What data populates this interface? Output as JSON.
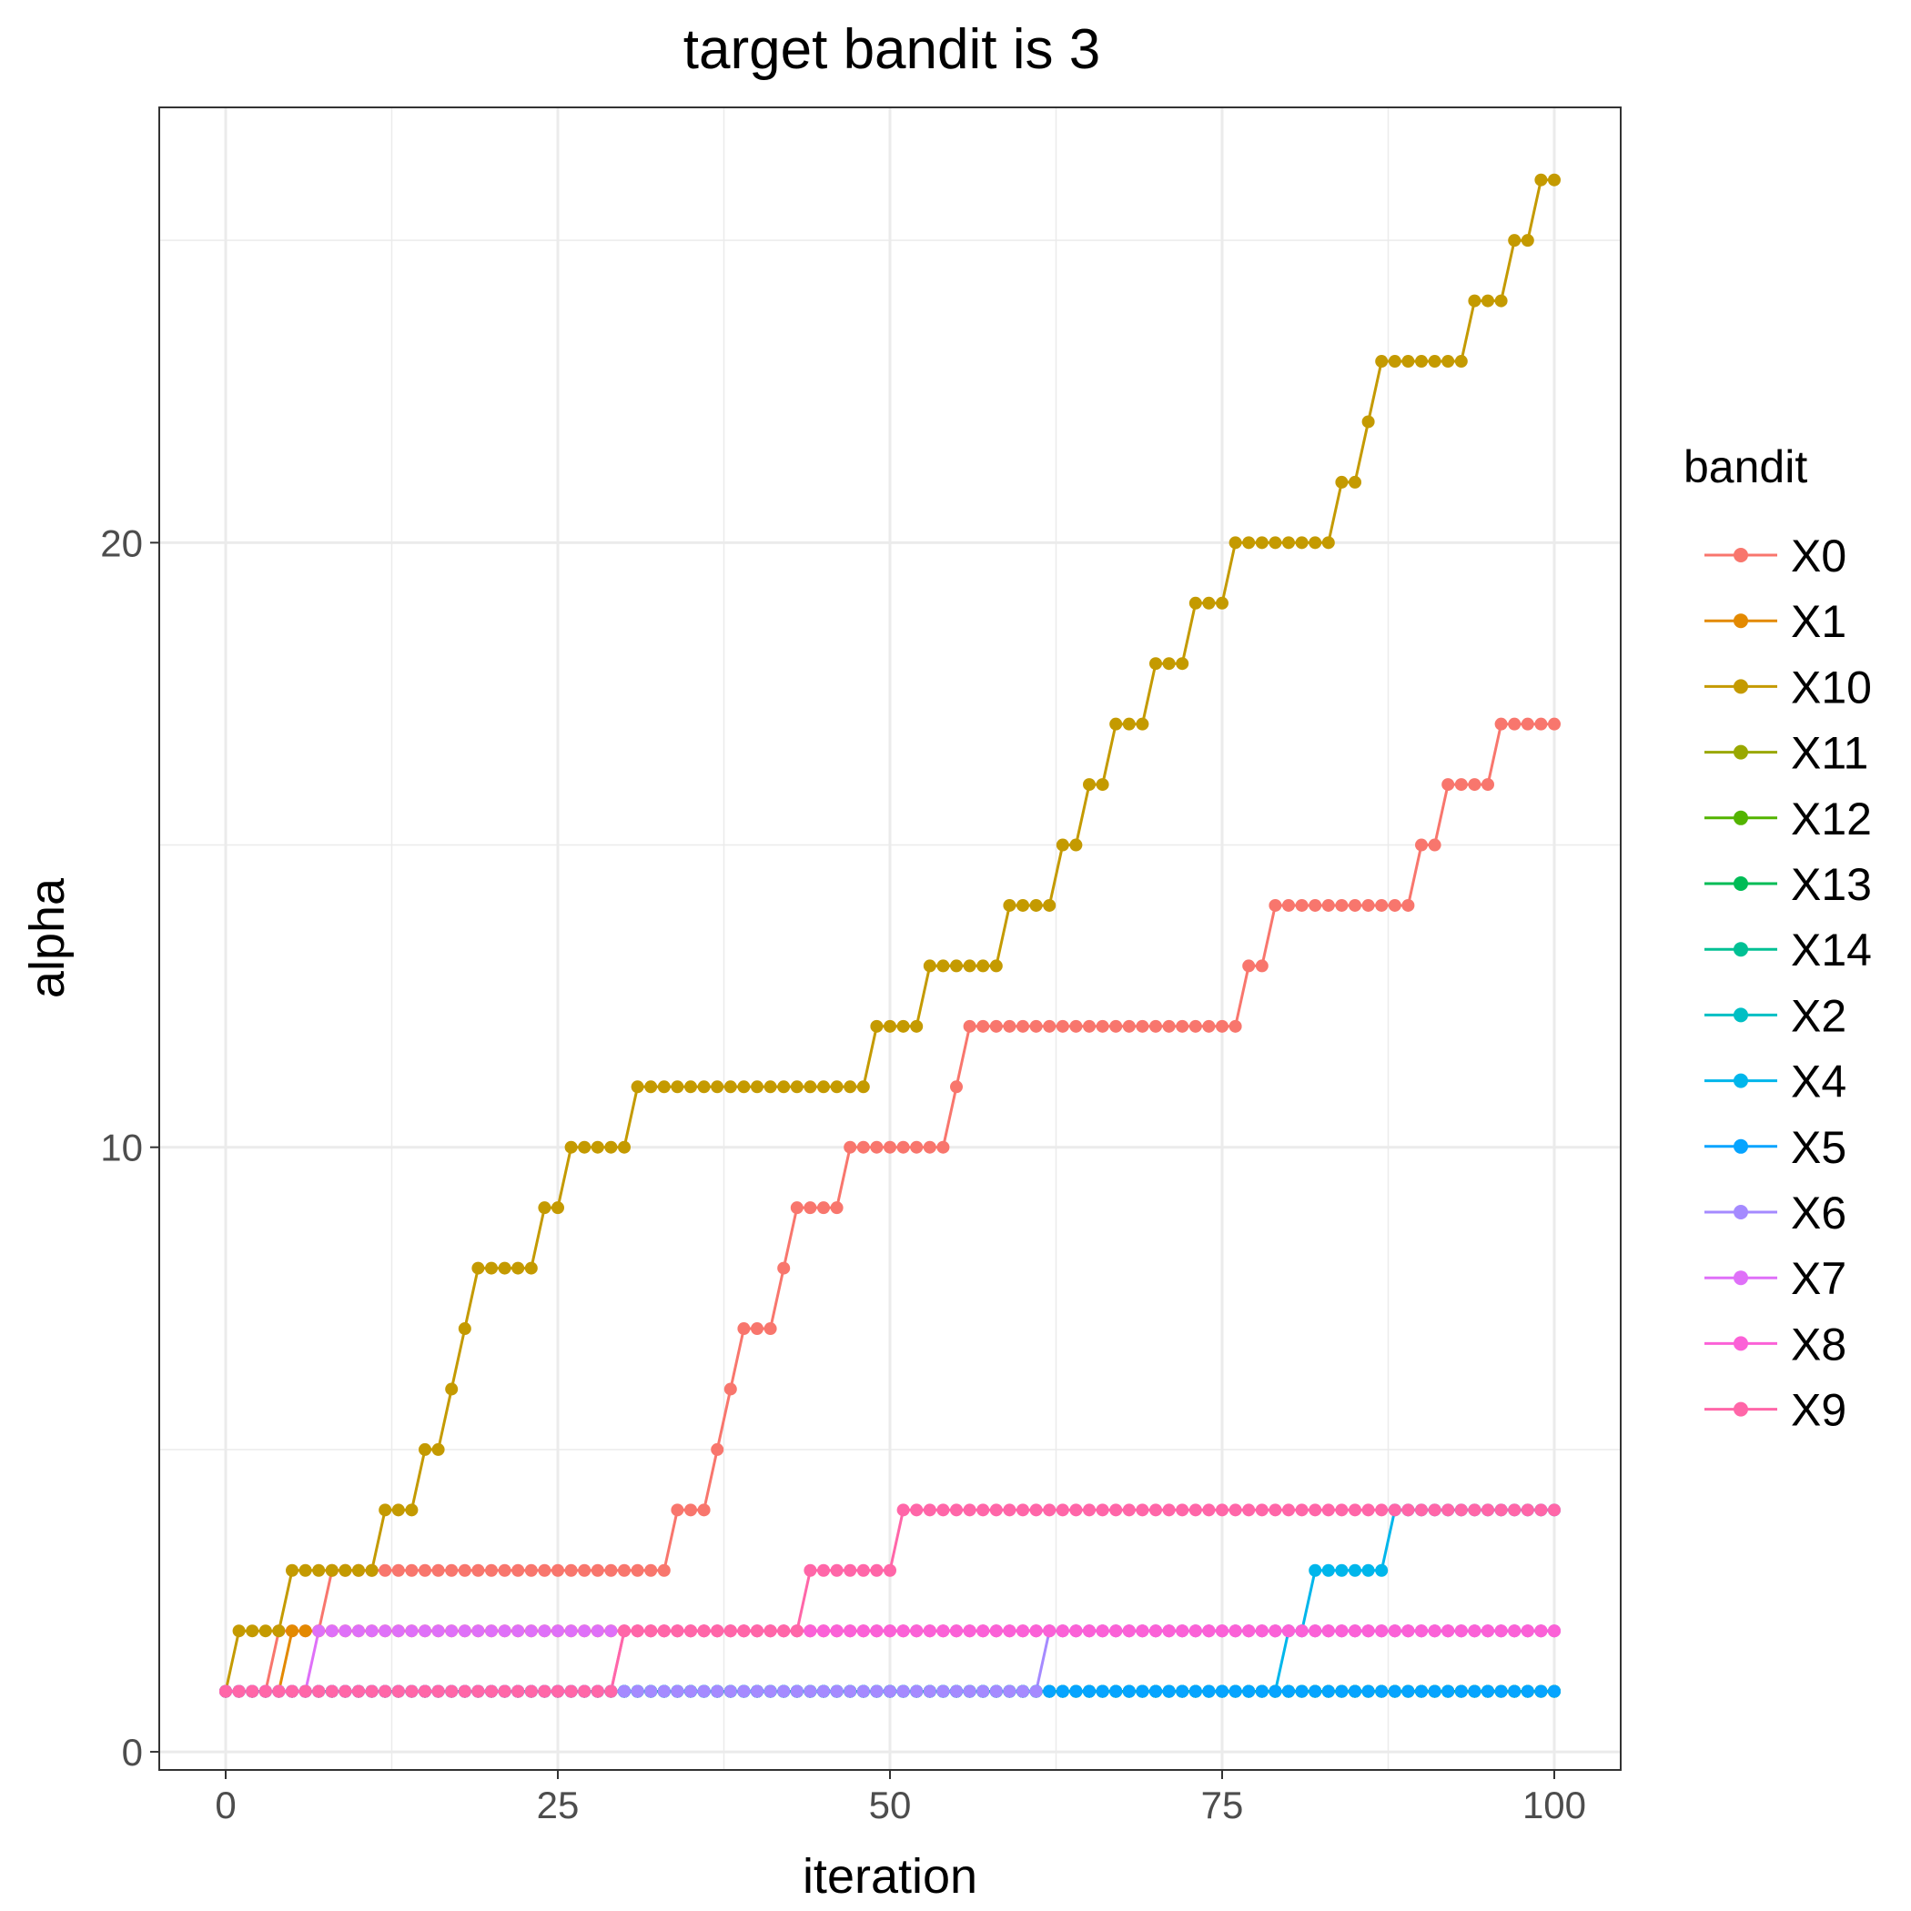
{
  "chart_data": {
    "type": "line",
    "title": "target bandit is 3",
    "xlabel": "iteration",
    "ylabel": "alpha",
    "xlim": [
      -5,
      105
    ],
    "ylim": [
      -0.3,
      27.2
    ],
    "x_ticks": [
      0,
      25,
      50,
      75,
      100
    ],
    "y_ticks": [
      0,
      10,
      20
    ],
    "grid": true,
    "legend_title": "bandit",
    "legend_position": "right",
    "colors": {
      "X0": "#F8766D",
      "X1": "#E38900",
      "X10": "#C49A00",
      "X11": "#99A800",
      "X12": "#53B400",
      "X13": "#00BC56",
      "X14": "#00C094",
      "X2": "#00BFC4",
      "X4": "#00B6EB",
      "X5": "#06A4FF",
      "X6": "#A58AFF",
      "X7": "#DF70F8",
      "X8": "#FB61D7",
      "X9": "#FF66A8"
    },
    "legend": [
      "X0",
      "X1",
      "X10",
      "X11",
      "X12",
      "X13",
      "X14",
      "X2",
      "X4",
      "X5",
      "X6",
      "X7",
      "X8",
      "X9"
    ],
    "series": [
      {
        "name": "X0",
        "steps": [
          [
            0,
            1
          ],
          [
            4,
            2
          ],
          [
            8,
            3
          ],
          [
            34,
            4
          ],
          [
            37,
            5
          ],
          [
            38,
            6
          ],
          [
            39,
            7
          ],
          [
            42,
            8
          ],
          [
            43,
            9
          ],
          [
            47,
            10
          ],
          [
            55,
            11
          ],
          [
            56,
            12
          ],
          [
            77,
            13
          ],
          [
            79,
            14
          ],
          [
            90,
            15
          ],
          [
            92,
            16
          ],
          [
            96,
            17
          ]
        ]
      },
      {
        "name": "X1",
        "steps": [
          [
            0,
            1
          ],
          [
            5,
            2
          ]
        ]
      },
      {
        "name": "X10",
        "steps": [
          [
            0,
            1
          ],
          [
            1,
            2
          ],
          [
            5,
            3
          ],
          [
            12,
            4
          ],
          [
            15,
            5
          ],
          [
            17,
            6
          ],
          [
            18,
            7
          ],
          [
            19,
            8
          ],
          [
            24,
            9
          ],
          [
            26,
            10
          ],
          [
            31,
            11
          ],
          [
            49,
            12
          ],
          [
            53,
            13
          ],
          [
            59,
            14
          ],
          [
            63,
            15
          ],
          [
            65,
            16
          ],
          [
            67,
            17
          ],
          [
            70,
            18
          ],
          [
            73,
            19
          ],
          [
            76,
            20
          ],
          [
            84,
            21
          ],
          [
            86,
            22
          ],
          [
            87,
            23
          ],
          [
            94,
            24
          ],
          [
            97,
            25
          ],
          [
            99,
            26
          ]
        ]
      },
      {
        "name": "X11",
        "steps": [
          [
            0,
            1
          ]
        ]
      },
      {
        "name": "X12",
        "steps": [
          [
            0,
            1
          ]
        ]
      },
      {
        "name": "X13",
        "steps": [
          [
            0,
            1
          ]
        ]
      },
      {
        "name": "X14",
        "steps": [
          [
            0,
            1
          ]
        ]
      },
      {
        "name": "X2",
        "steps": [
          [
            0,
            1
          ]
        ]
      },
      {
        "name": "X4",
        "steps": [
          [
            0,
            1
          ],
          [
            80,
            2
          ],
          [
            82,
            3
          ],
          [
            88,
            4
          ]
        ]
      },
      {
        "name": "X5",
        "steps": [
          [
            0,
            1
          ]
        ]
      },
      {
        "name": "X6",
        "steps": [
          [
            0,
            1
          ],
          [
            62,
            2
          ]
        ]
      },
      {
        "name": "X7",
        "steps": [
          [
            0,
            1
          ],
          [
            7,
            2
          ]
        ]
      },
      {
        "name": "X8",
        "steps": [
          [
            0,
            1
          ],
          [
            30,
            2
          ]
        ]
      },
      {
        "name": "X9",
        "steps": [
          [
            0,
            1
          ],
          [
            30,
            2
          ],
          [
            44,
            3
          ],
          [
            51,
            4
          ]
        ]
      }
    ]
  }
}
